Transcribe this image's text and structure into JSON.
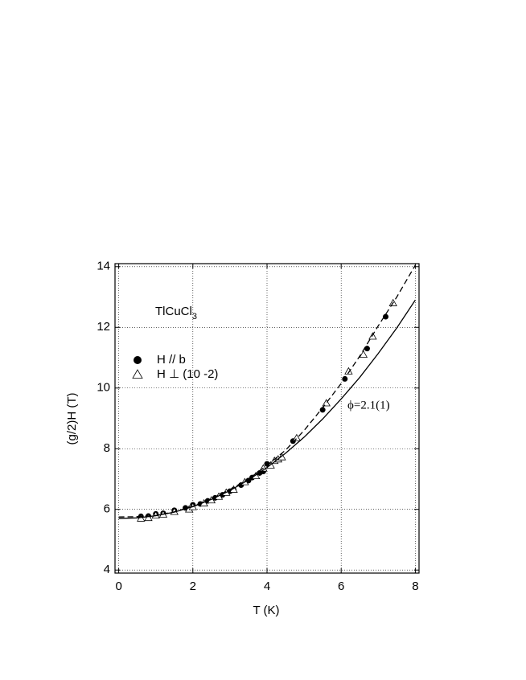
{
  "chart_data": {
    "type": "scatter",
    "xlabel": "T (K)",
    "ylabel": "(g/2)H (T)",
    "sample_label": {
      "text": "TlCuCl",
      "subscript": "3"
    },
    "annotation": "ϕ=2.1(1)",
    "xlim": [
      -0.1,
      8.1
    ],
    "ylim": [
      3.9,
      14.1
    ],
    "xticks": [
      0,
      2,
      4,
      6,
      8
    ],
    "yticks": [
      4,
      6,
      8,
      10,
      12,
      14
    ],
    "grid": true,
    "series": [
      {
        "name": "H // b",
        "marker": "circle",
        "color": "#000000",
        "x": [
          0.6,
          0.8,
          1.0,
          1.2,
          1.5,
          1.8,
          2.0,
          2.2,
          2.4,
          2.6,
          2.8,
          3.0,
          3.1,
          3.3,
          3.5,
          3.6,
          3.8,
          3.9,
          4.0,
          4.7,
          5.5,
          6.1,
          6.7,
          7.2
        ],
        "values": [
          5.77,
          5.78,
          5.85,
          5.87,
          5.97,
          6.05,
          6.15,
          6.18,
          6.28,
          6.38,
          6.48,
          6.6,
          6.65,
          6.8,
          6.95,
          7.05,
          7.2,
          7.25,
          7.5,
          8.25,
          9.28,
          10.3,
          11.3,
          12.35
        ]
      },
      {
        "name": "H ⊥ (10 -2)",
        "marker": "triangle",
        "color": "#000000",
        "x": [
          0.6,
          0.8,
          1.0,
          1.2,
          1.5,
          1.9,
          2.0,
          2.3,
          2.5,
          2.7,
          2.9,
          3.1,
          3.4,
          3.7,
          3.9,
          4.1,
          4.2,
          4.3,
          4.4,
          4.8,
          5.6,
          6.2,
          6.6,
          6.85,
          7.4
        ],
        "values": [
          5.7,
          5.72,
          5.8,
          5.83,
          5.92,
          6.0,
          6.08,
          6.2,
          6.3,
          6.42,
          6.55,
          6.65,
          6.9,
          7.1,
          7.35,
          7.45,
          7.6,
          7.65,
          7.72,
          8.35,
          9.5,
          10.55,
          11.1,
          11.7,
          12.8
        ]
      },
      {
        "line": "solid",
        "color": "#000000",
        "x": [
          0,
          0.5,
          1,
          1.5,
          2,
          2.5,
          3,
          3.5,
          4,
          4.5,
          5,
          5.5,
          6,
          6.5,
          7,
          7.5,
          8
        ],
        "values": [
          5.7,
          5.72,
          5.79,
          5.91,
          6.09,
          6.33,
          6.62,
          6.97,
          7.38,
          7.85,
          8.38,
          8.98,
          9.64,
          10.35,
          11.14,
          11.98,
          12.9
        ]
      },
      {
        "line": "dashed",
        "color": "#000000",
        "x": [
          0,
          0.5,
          1,
          1.5,
          2,
          2.5,
          3,
          3.5,
          4,
          4.5,
          5,
          5.5,
          6,
          6.5,
          7,
          7.5,
          8
        ],
        "values": [
          5.75,
          5.76,
          5.8,
          5.92,
          6.1,
          6.35,
          6.65,
          7.0,
          7.45,
          7.95,
          8.6,
          9.35,
          10.15,
          11.05,
          12.05,
          13.0,
          14.05
        ]
      }
    ]
  }
}
